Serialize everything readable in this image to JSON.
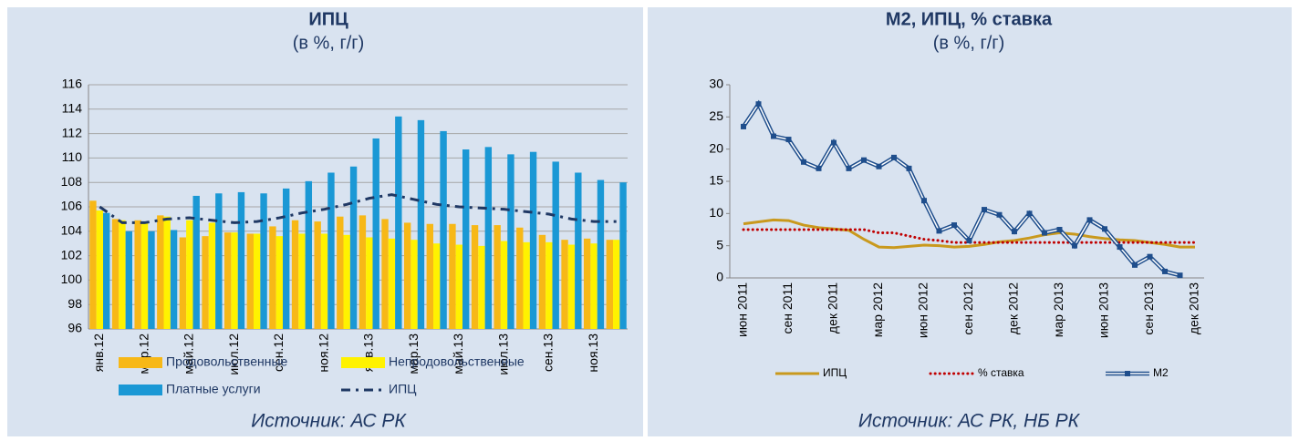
{
  "chart_data": [
    {
      "type": "bar",
      "title": "ИПЦ",
      "subtitle": "(в %, г/г)",
      "source": "Источник: АС РК",
      "categories": [
        "янв.12",
        null,
        "мар.12",
        null,
        "май.12",
        null,
        "июл.12",
        null,
        "сен.12",
        null,
        "ноя.12",
        null,
        "янв.13",
        null,
        "мар.13",
        null,
        "май.13",
        null,
        "июл.13",
        null,
        "сен.13",
        null,
        "ноя.13",
        null
      ],
      "series": [
        {
          "name": "Продовольственные",
          "color": "#f7b817",
          "values": [
            106.5,
            105.0,
            104.9,
            105.3,
            103.5,
            103.6,
            103.9,
            103.8,
            104.4,
            104.9,
            104.8,
            105.2,
            105.3,
            105.0,
            104.7,
            104.6,
            104.6,
            104.5,
            104.5,
            104.3,
            103.7,
            103.3,
            103.4,
            103.3
          ]
        },
        {
          "name": "Непродовольственные",
          "color": "#fff200",
          "values": [
            105.7,
            104.9,
            104.7,
            105.2,
            104.9,
            104.7,
            103.9,
            103.8,
            103.6,
            103.8,
            103.8,
            103.7,
            103.5,
            103.4,
            103.3,
            103.0,
            102.9,
            102.8,
            103.2,
            103.1,
            103.1,
            102.9,
            103.0,
            103.3
          ]
        },
        {
          "name": "Платные услуги",
          "color": "#1a98d5",
          "values": [
            105.5,
            104.0,
            104.0,
            104.1,
            106.9,
            107.1,
            107.2,
            107.1,
            107.5,
            108.1,
            108.8,
            109.3,
            111.6,
            113.4,
            113.1,
            112.2,
            110.7,
            110.9,
            110.3,
            110.5,
            109.7,
            108.8,
            108.2,
            108.0
          ]
        },
        {
          "name": "ИПЦ",
          "type": "line",
          "style": "dashdot",
          "color": "#1f3864",
          "values": [
            106.0,
            104.7,
            104.7,
            105.0,
            105.1,
            104.9,
            104.7,
            104.8,
            105.1,
            105.5,
            105.8,
            106.2,
            106.7,
            107.0,
            106.6,
            106.2,
            106.0,
            105.9,
            105.8,
            105.6,
            105.4,
            105.0,
            104.8,
            104.8
          ]
        }
      ],
      "ylim": [
        96,
        116
      ],
      "yticks": [
        96,
        98,
        100,
        102,
        104,
        106,
        108,
        110,
        112,
        114,
        116
      ],
      "grid": true,
      "legend": "bottom"
    },
    {
      "type": "line",
      "title": "М2, ИПЦ, % ставка",
      "subtitle": "(в %, г/г)",
      "source": "Источник: АС РК, НБ РК",
      "categories": [
        "июн 2011",
        null,
        null,
        "сен 2011",
        null,
        null,
        "дек 2011",
        null,
        null,
        "мар 2012",
        null,
        null,
        "июн 2012",
        null,
        null,
        "сен 2012",
        null,
        null,
        "дек 2012",
        null,
        null,
        "мар 2013",
        null,
        null,
        "июн 2013",
        null,
        null,
        "сен 2013",
        null,
        null,
        "дек 2013"
      ],
      "series": [
        {
          "name": "ИПЦ",
          "style": "solid",
          "color": "#c9991d",
          "values": [
            8.4,
            8.7,
            9.0,
            8.9,
            8.2,
            7.8,
            7.6,
            7.4,
            6.0,
            4.8,
            4.7,
            4.9,
            5.1,
            5.0,
            4.8,
            4.9,
            5.2,
            5.6,
            5.8,
            6.2,
            6.7,
            7.0,
            6.8,
            6.4,
            6.1,
            5.9,
            5.8,
            5.5,
            5.2,
            4.8,
            4.8
          ]
        },
        {
          "name": "% ставка",
          "style": "dotted",
          "color": "#c00000",
          "values": [
            7.5,
            7.5,
            7.5,
            7.5,
            7.5,
            7.5,
            7.5,
            7.5,
            7.5,
            7.0,
            7.0,
            6.5,
            6.0,
            5.8,
            5.5,
            5.5,
            5.5,
            5.5,
            5.5,
            5.5,
            5.5,
            5.5,
            5.5,
            5.5,
            5.5,
            5.5,
            5.5,
            5.5,
            5.5,
            5.5,
            5.5
          ]
        },
        {
          "name": "М2",
          "style": "double",
          "color": "#1f4e8c",
          "values": [
            23.5,
            27.0,
            22.0,
            21.5,
            18.0,
            17.0,
            21.0,
            17.0,
            18.3,
            17.3,
            18.7,
            17.0,
            12.0,
            7.3,
            8.2,
            5.8,
            10.6,
            9.8,
            7.2,
            10.0,
            7.0,
            7.5,
            5.0,
            9.0,
            7.6,
            4.8,
            2.0,
            3.3,
            1.0,
            0.4,
            null
          ]
        }
      ],
      "ylim": [
        0,
        30
      ],
      "yticks": [
        0,
        5,
        10,
        15,
        20,
        25,
        30
      ],
      "grid": false,
      "legend": "bottom"
    }
  ]
}
